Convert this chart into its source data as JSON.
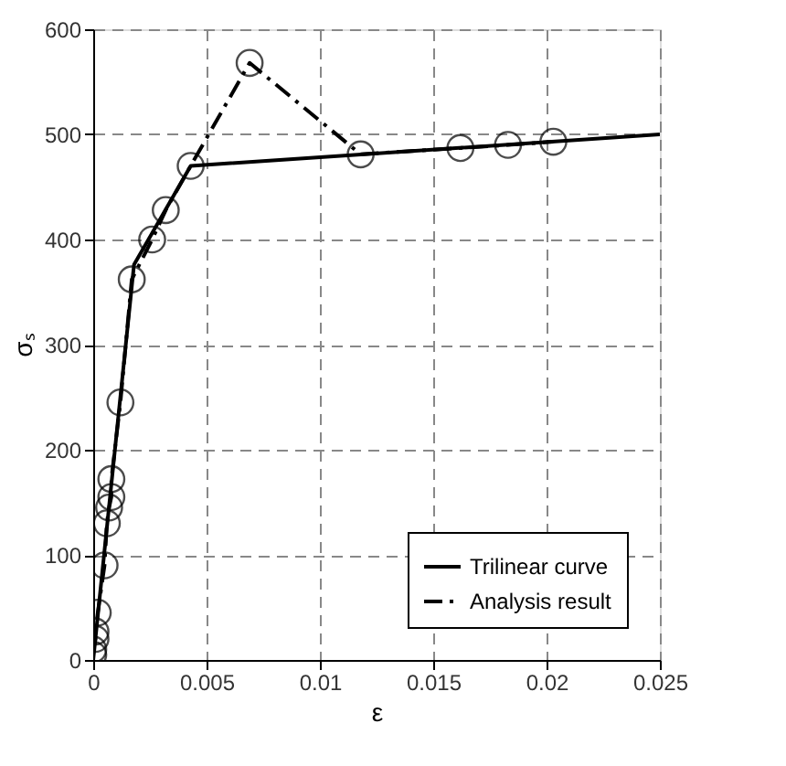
{
  "chart_data": {
    "type": "line",
    "xlabel": "ε",
    "ylabel": "σₛ",
    "xlim": [
      0,
      0.025
    ],
    "xticks": [
      0,
      0.005,
      0.01,
      0.015,
      0.02,
      0.025
    ],
    "ylim": [
      0,
      600
    ],
    "yticks": [
      0,
      100,
      200,
      300,
      400,
      500,
      600
    ],
    "grid": true,
    "legend": "bottom right",
    "series": [
      {
        "name": "Trilinear curve",
        "color": "#000000",
        "marker": "none",
        "line_style": "solid",
        "x": [
          0,
          0.0018,
          0.0043,
          0.025
        ],
        "values": [
          0,
          376,
          470,
          500
        ]
      },
      {
        "name": "Analysis result",
        "color": "#000000",
        "marker": "circle",
        "line_style": "dashed",
        "x": [
          0,
          0,
          0.0001,
          0.0001,
          0.0002,
          0.0005,
          0.0006,
          0.0007,
          0.0008,
          0.0008,
          0.0012,
          0.0017,
          0.0026,
          0.0032,
          0.0043,
          0.0069,
          0.0118,
          0.0162,
          0.0183,
          0.0203
        ],
        "values": [
          5,
          10,
          20,
          27,
          45,
          90,
          130,
          145,
          155,
          172,
          245,
          362,
          400,
          428,
          470,
          568,
          481,
          487,
          490,
          493
        ]
      }
    ]
  }
}
